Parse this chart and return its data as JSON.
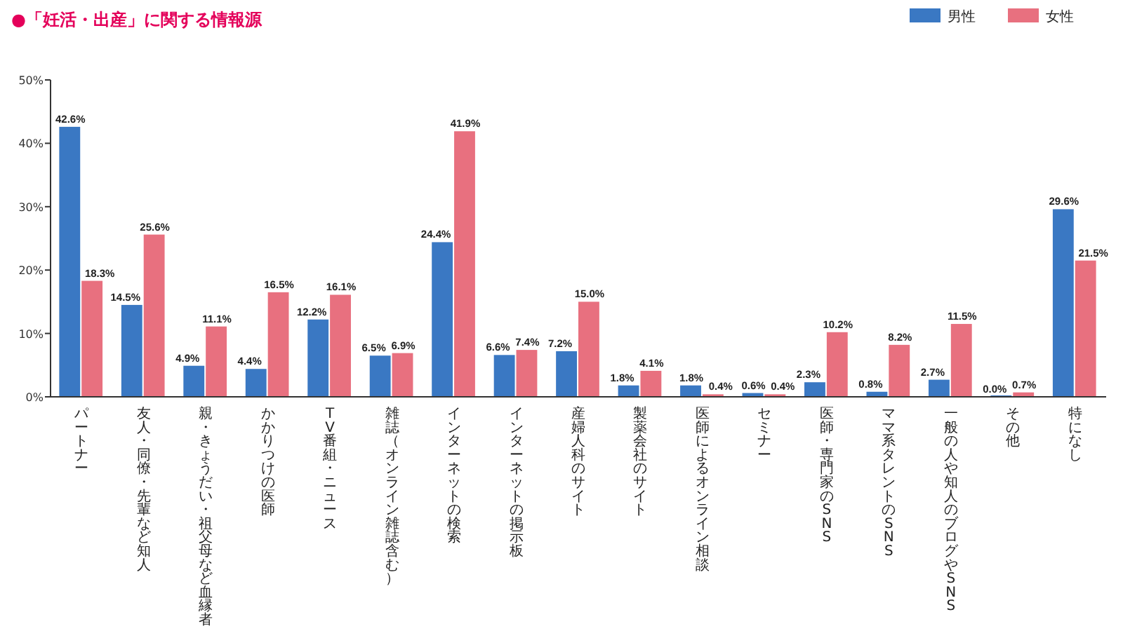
{
  "chart_data": {
    "type": "bar",
    "title": "●「妊活・出産」に関する情報源",
    "categories": [
      "パートナー",
      "友人・同僚・先輩など知人",
      "親・きょうだい・祖父母など血縁者",
      "かかりつけの医師",
      "TV番組・ニュース",
      "雑誌（オンライン雑誌含む）",
      "インターネットの検索",
      "インターネットの掲示板",
      "産婦人科のサイト",
      "製薬会社のサイト",
      "医師によるオンライン相談",
      "セミナー",
      "医師・専門家のSNS",
      "ママ系タレントのSNS",
      "一般の人や知人のブログやSNS",
      "その他",
      "特になし"
    ],
    "series": [
      {
        "name": "男性",
        "color": "#3a78c3",
        "values": [
          42.6,
          14.5,
          4.9,
          4.4,
          12.2,
          6.5,
          24.4,
          6.6,
          7.2,
          1.8,
          1.8,
          0.6,
          2.3,
          0.8,
          2.7,
          0.0,
          29.6
        ],
        "value_labels": [
          "42.6%",
          "14.5%",
          "4.9%",
          "4.4%",
          "12.2%",
          "6.5%",
          "24.4%",
          "6.6%",
          "7.2%",
          "1.8%",
          "1.8%",
          "0.6%",
          "2.3%",
          "0.8%",
          "2.7%",
          "0.0%",
          "29.6%"
        ]
      },
      {
        "name": "女性",
        "color": "#e8707f",
        "values": [
          18.3,
          25.6,
          11.1,
          16.5,
          16.1,
          6.9,
          41.9,
          7.4,
          15.0,
          4.1,
          0.4,
          0.4,
          10.2,
          8.2,
          11.5,
          0.7,
          21.5
        ],
        "value_labels": [
          "18.3%",
          "25.6%",
          "11.1%",
          "16.5%",
          "16.1%",
          "6.9%",
          "41.9%",
          "7.4%",
          "15.0%",
          "4.1%",
          "0.4%",
          "0.4%",
          "10.2%",
          "8.2%",
          "11.5%",
          "0.7%",
          "21.5%"
        ]
      }
    ],
    "ylim": [
      0,
      50
    ],
    "yticks": [
      {
        "value": 0,
        "label": "0%"
      },
      {
        "value": 10,
        "label": "10%"
      },
      {
        "value": 20,
        "label": "20%"
      },
      {
        "value": 30,
        "label": "30%"
      },
      {
        "value": 40,
        "label": "40%"
      },
      {
        "value": 50,
        "label": "50%"
      }
    ],
    "legend": "top right"
  }
}
